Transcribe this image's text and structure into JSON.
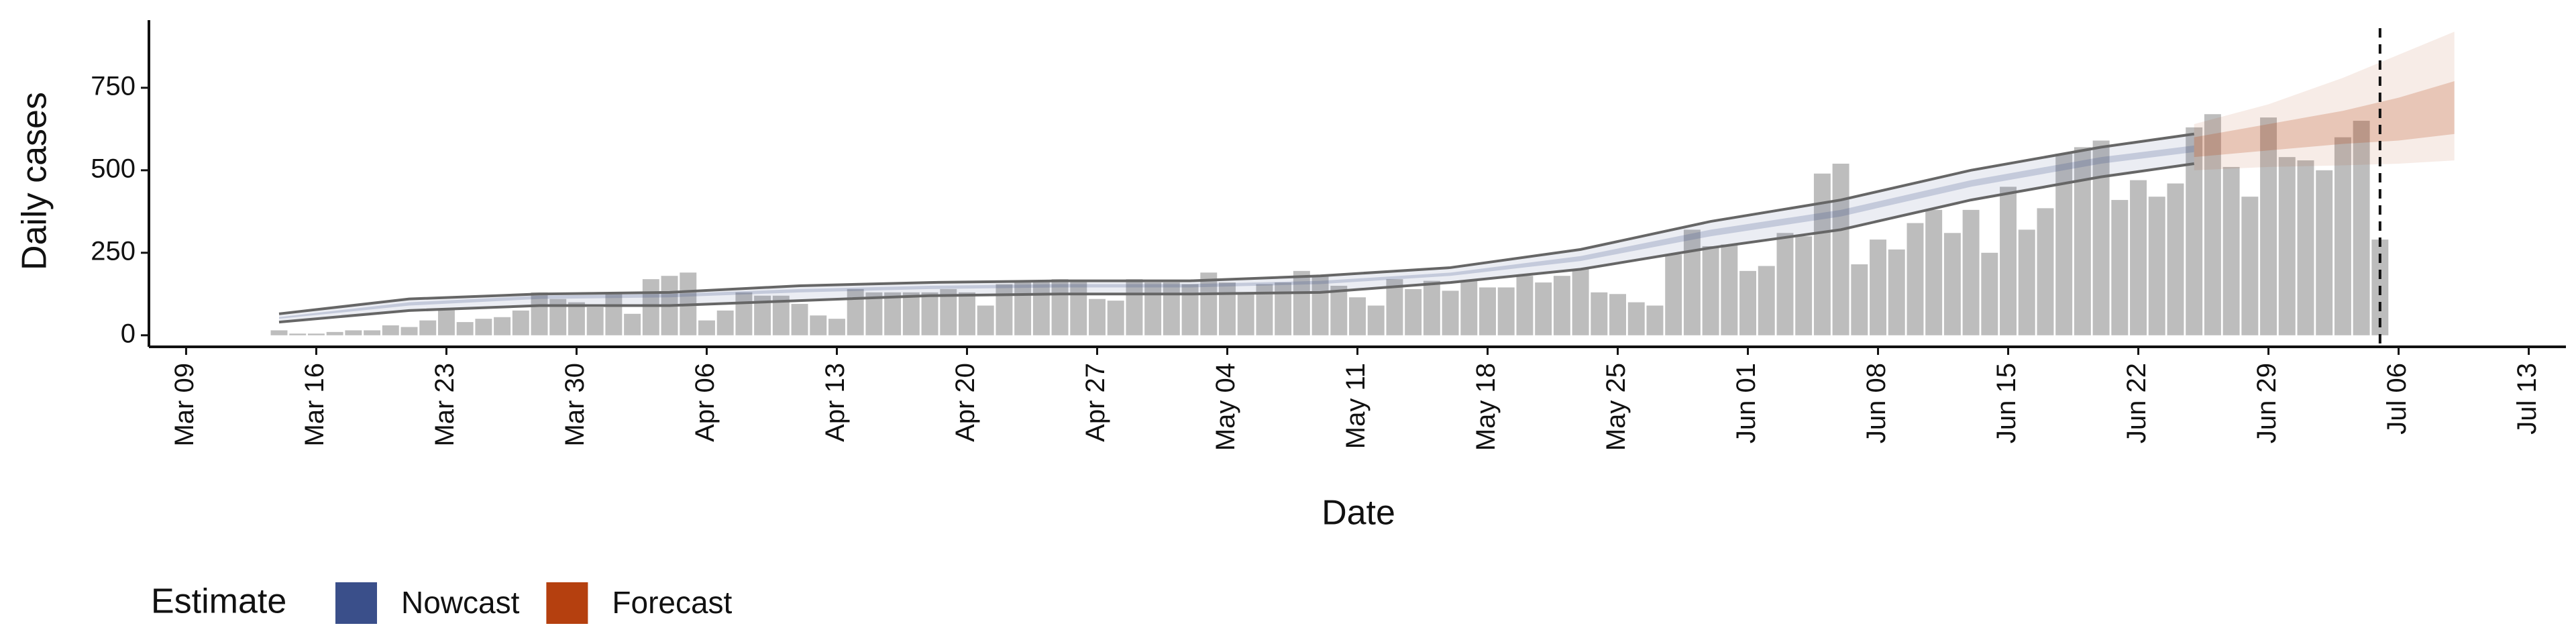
{
  "chart_data": {
    "type": "bar",
    "x_label": "Date",
    "y_label": "Daily cases",
    "legend_title": "Estimate",
    "xlim": [
      "03-07",
      "07-15"
    ],
    "ylim": [
      -35,
      955
    ],
    "xticks": [
      {
        "value": "03-09",
        "label": "Mar 09"
      },
      {
        "value": "03-16",
        "label": "Mar 16"
      },
      {
        "value": "03-23",
        "label": "Mar 23"
      },
      {
        "value": "03-30",
        "label": "Mar 30"
      },
      {
        "value": "04-06",
        "label": "Apr 06"
      },
      {
        "value": "04-13",
        "label": "Apr 13"
      },
      {
        "value": "04-20",
        "label": "Apr 20"
      },
      {
        "value": "04-27",
        "label": "Apr 27"
      },
      {
        "value": "05-04",
        "label": "May 04"
      },
      {
        "value": "05-11",
        "label": "May 11"
      },
      {
        "value": "05-18",
        "label": "May 18"
      },
      {
        "value": "05-25",
        "label": "May 25"
      },
      {
        "value": "06-01",
        "label": "Jun 01"
      },
      {
        "value": "06-08",
        "label": "Jun 08"
      },
      {
        "value": "06-15",
        "label": "Jun 15"
      },
      {
        "value": "06-22",
        "label": "Jun 22"
      },
      {
        "value": "06-29",
        "label": "Jun 29"
      },
      {
        "value": "07-06",
        "label": "Jul 06"
      },
      {
        "value": "07-13",
        "label": "Jul 13"
      }
    ],
    "yticks": [
      0,
      250,
      500,
      750
    ],
    "color": "#bdbdbd",
    "vline": "07-05",
    "x": [
      "03-14",
      "03-15",
      "03-16",
      "03-17",
      "03-18",
      "03-19",
      "03-20",
      "03-21",
      "03-22",
      "03-23",
      "03-24",
      "03-25",
      "03-26",
      "03-27",
      "03-28",
      "03-29",
      "03-30",
      "03-31",
      "04-01",
      "04-02",
      "04-03",
      "04-04",
      "04-05",
      "04-06",
      "04-07",
      "04-08",
      "04-09",
      "04-10",
      "04-11",
      "04-12",
      "04-13",
      "04-14",
      "04-15",
      "04-16",
      "04-17",
      "04-18",
      "04-19",
      "04-20",
      "04-21",
      "04-22",
      "04-23",
      "04-24",
      "04-25",
      "04-26",
      "04-27",
      "04-28",
      "04-29",
      "04-30",
      "05-01",
      "05-02",
      "05-03",
      "05-04",
      "05-05",
      "05-06",
      "05-07",
      "05-08",
      "05-09",
      "05-10",
      "05-11",
      "05-12",
      "05-13",
      "05-14",
      "05-15",
      "05-16",
      "05-17",
      "05-18",
      "05-19",
      "05-20",
      "05-21",
      "05-22",
      "05-23",
      "05-24",
      "05-25",
      "05-26",
      "05-27",
      "05-28",
      "05-29",
      "05-30",
      "05-31",
      "06-01",
      "06-02",
      "06-03",
      "06-04",
      "06-05",
      "06-06",
      "06-07",
      "06-08",
      "06-09",
      "06-10",
      "06-11",
      "06-12",
      "06-13",
      "06-14",
      "06-15",
      "06-16",
      "06-17",
      "06-18",
      "06-19",
      "06-20",
      "06-21",
      "06-22",
      "06-23",
      "06-24",
      "06-25",
      "06-26",
      "06-27",
      "06-28",
      "06-29",
      "06-30",
      "07-01",
      "07-02",
      "07-03",
      "07-04",
      "07-05"
    ],
    "values": [
      15,
      5,
      5,
      10,
      15,
      15,
      30,
      25,
      45,
      80,
      40,
      50,
      55,
      75,
      130,
      110,
      100,
      85,
      130,
      65,
      170,
      180,
      190,
      45,
      75,
      130,
      120,
      120,
      95,
      60,
      50,
      140,
      130,
      130,
      130,
      130,
      140,
      130,
      90,
      155,
      165,
      165,
      170,
      165,
      110,
      105,
      170,
      160,
      160,
      155,
      190,
      160,
      130,
      155,
      160,
      195,
      180,
      150,
      115,
      90,
      170,
      140,
      165,
      135,
      165,
      145,
      145,
      180,
      160,
      180,
      200,
      130,
      125,
      100,
      90,
      245,
      320,
      270,
      275,
      195,
      210,
      310,
      300,
      490,
      520,
      215,
      290,
      260,
      340,
      380,
      310,
      380,
      250,
      450,
      320,
      385,
      550,
      570,
      590,
      410,
      470,
      420,
      460,
      630,
      670,
      510,
      420,
      660,
      540,
      530,
      500,
      600,
      650,
      290
    ],
    "estimates": [
      {
        "name": "Nowcast",
        "color": "#3a4f8a",
        "outline": true,
        "x": [
          "03-14",
          "03-21",
          "03-28",
          "04-04",
          "04-11",
          "04-18",
          "04-25",
          "05-02",
          "05-09",
          "05-16",
          "05-23",
          "05-30",
          "06-06",
          "06-13",
          "06-20",
          "06-25"
        ],
        "lower90": [
          40,
          75,
          90,
          90,
          105,
          120,
          125,
          125,
          130,
          160,
          200,
          265,
          320,
          410,
          480,
          520
        ],
        "lower50": [
          50,
          90,
          110,
          115,
          130,
          140,
          145,
          145,
          155,
          180,
          225,
          300,
          360,
          450,
          520,
          555
        ],
        "upper50": [
          55,
          100,
          120,
          125,
          140,
          150,
          155,
          155,
          165,
          190,
          240,
          320,
          380,
          470,
          540,
          575
        ],
        "upper90": [
          65,
          110,
          125,
          130,
          150,
          160,
          165,
          165,
          180,
          205,
          260,
          345,
          410,
          500,
          570,
          610
        ]
      },
      {
        "name": "Forecast",
        "color": "#b5400f",
        "outline": false,
        "x": [
          "06-25",
          "06-29",
          "07-03",
          "07-06",
          "07-09"
        ],
        "lower90": [
          500,
          510,
          515,
          520,
          530
        ],
        "lower50": [
          540,
          560,
          580,
          590,
          610
        ],
        "upper50": [
          600,
          640,
          680,
          720,
          770
        ],
        "upper90": [
          640,
          700,
          780,
          850,
          920
        ]
      }
    ]
  }
}
